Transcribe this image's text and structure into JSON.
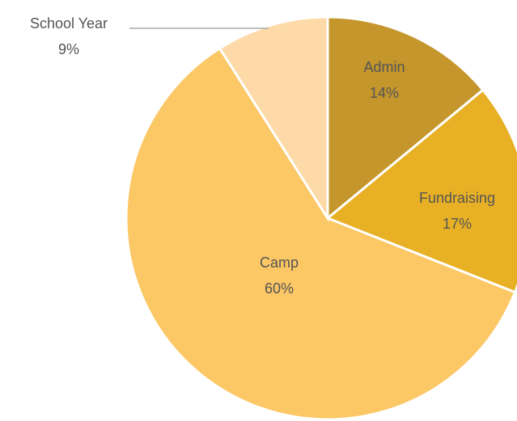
{
  "chart_data": {
    "type": "pie",
    "categories": [
      "Admin",
      "Fundraising",
      "Camp",
      "School Year"
    ],
    "values": [
      14,
      17,
      60,
      9
    ],
    "value_labels": [
      "14%",
      "17%",
      "60%",
      "9%"
    ],
    "colors": [
      "#c4962c",
      "#e8b125",
      "#fcc765",
      "#fddaa8"
    ]
  }
}
